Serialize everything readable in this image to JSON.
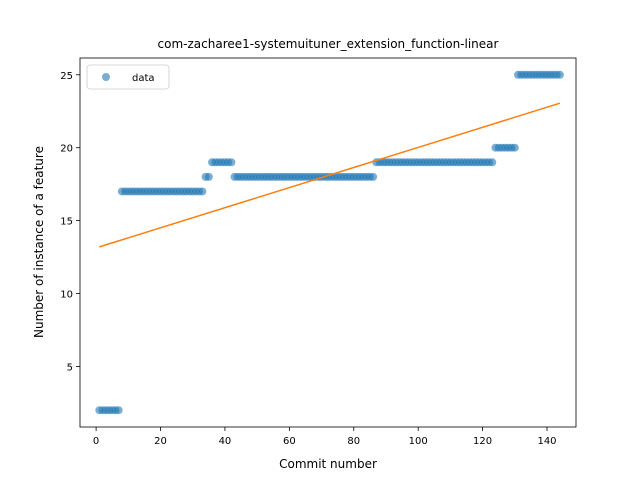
{
  "chart_data": {
    "type": "scatter",
    "title": "com-zacharee1-systemuituner_extension_function-linear",
    "xlabel": "Commit number",
    "ylabel": "Number of instance of a feature",
    "xlim": [
      -5,
      149
    ],
    "ylim": [
      0.85,
      26.15
    ],
    "xticks": [
      0,
      20,
      40,
      60,
      80,
      100,
      120,
      140
    ],
    "yticks": [
      5,
      10,
      15,
      20,
      25
    ],
    "legend": {
      "position": "top-left",
      "entries": [
        "data"
      ]
    },
    "colors": {
      "points": "#1f77b4",
      "fit": "#ff7f0e"
    },
    "series": [
      {
        "name": "data",
        "x": [
          1,
          2,
          3,
          4,
          5,
          6,
          7,
          8,
          9,
          10,
          11,
          12,
          13,
          14,
          15,
          16,
          17,
          18,
          19,
          20,
          21,
          22,
          23,
          24,
          25,
          26,
          27,
          28,
          29,
          30,
          31,
          32,
          33,
          34,
          35,
          36,
          37,
          38,
          39,
          40,
          41,
          42,
          43,
          44,
          45,
          46,
          47,
          48,
          49,
          50,
          51,
          52,
          53,
          54,
          55,
          56,
          57,
          58,
          59,
          60,
          61,
          62,
          63,
          64,
          65,
          66,
          67,
          68,
          69,
          70,
          71,
          72,
          73,
          74,
          75,
          76,
          77,
          78,
          79,
          80,
          81,
          82,
          83,
          84,
          85,
          86,
          87,
          88,
          89,
          90,
          91,
          92,
          93,
          94,
          95,
          96,
          97,
          98,
          99,
          100,
          101,
          102,
          103,
          104,
          105,
          106,
          107,
          108,
          109,
          110,
          111,
          112,
          113,
          114,
          115,
          116,
          117,
          118,
          119,
          120,
          121,
          122,
          123,
          124,
          125,
          126,
          127,
          128,
          129,
          130,
          131,
          132,
          133,
          134,
          135,
          136,
          137,
          138,
          139,
          140,
          141,
          142,
          143,
          144
        ],
        "y": [
          2,
          2,
          2,
          2,
          2,
          2,
          2,
          17,
          17,
          17,
          17,
          17,
          17,
          17,
          17,
          17,
          17,
          17,
          17,
          17,
          17,
          17,
          17,
          17,
          17,
          17,
          17,
          17,
          17,
          17,
          17,
          17,
          17,
          18,
          18,
          19,
          19,
          19,
          19,
          19,
          19,
          19,
          18,
          18,
          18,
          18,
          18,
          18,
          18,
          18,
          18,
          18,
          18,
          18,
          18,
          18,
          18,
          18,
          18,
          18,
          18,
          18,
          18,
          18,
          18,
          18,
          18,
          18,
          18,
          18,
          18,
          18,
          18,
          18,
          18,
          18,
          18,
          18,
          18,
          18,
          18,
          18,
          18,
          18,
          18,
          18,
          19,
          19,
          19,
          19,
          19,
          19,
          19,
          19,
          19,
          19,
          19,
          19,
          19,
          19,
          19,
          19,
          19,
          19,
          19,
          19,
          19,
          19,
          19,
          19,
          19,
          19,
          19,
          19,
          19,
          19,
          19,
          19,
          19,
          19,
          19,
          19,
          19,
          20,
          20,
          20,
          20,
          20,
          20,
          20,
          25,
          25,
          25,
          25,
          25,
          25,
          25,
          25,
          25,
          25,
          25,
          25,
          25,
          25
        ]
      },
      {
        "name": "",
        "kind": "line",
        "x": [
          1,
          144
        ],
        "y": [
          13.2,
          23.05
        ]
      }
    ]
  }
}
